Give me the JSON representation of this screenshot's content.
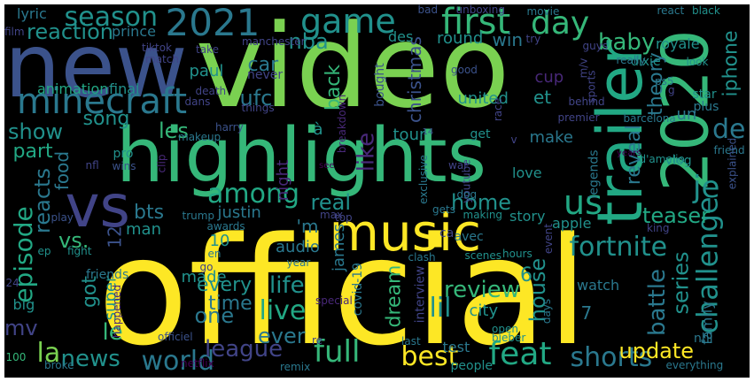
{
  "word_cloud": {
    "colors": {
      "background": "#000000",
      "yellow": "#fde725",
      "green": "#7ad151",
      "teal_green": "#35b779",
      "sea_green": "#22a884",
      "teal": "#21918c",
      "blue_teal": "#2a788e",
      "blue": "#3b528b",
      "indigo": "#414487",
      "purple": "#482878",
      "deep_purple": "#440154"
    },
    "words": [
      {
        "text": "video",
        "color": "green"
      },
      {
        "text": "official",
        "color": "yellow"
      },
      {
        "text": "highlights",
        "color": "teal_green"
      },
      {
        "text": "new",
        "color": "blue"
      },
      {
        "text": "2020",
        "color": "teal_green"
      },
      {
        "text": "trailer",
        "color": "sea_green"
      },
      {
        "text": "music",
        "color": "yellow"
      },
      {
        "text": "vs",
        "color": "indigo"
      },
      {
        "text": "2021",
        "color": "blue_teal"
      },
      {
        "text": "game",
        "color": "teal"
      },
      {
        "text": "first",
        "color": "teal_green"
      },
      {
        "text": "day",
        "color": "teal_green"
      },
      {
        "text": "minecraft",
        "color": "blue_teal"
      },
      {
        "text": "season",
        "color": "teal"
      },
      {
        "text": "fortnite",
        "color": "teal"
      },
      {
        "text": "world",
        "color": "blue_teal"
      },
      {
        "text": "shorts",
        "color": "blue_teal"
      },
      {
        "text": "full",
        "color": "teal_green"
      },
      {
        "text": "feat",
        "color": "sea_green"
      },
      {
        "text": "best",
        "color": "yellow"
      },
      {
        "text": "episode",
        "color": "sea_green"
      },
      {
        "text": "live",
        "color": "sea_green"
      },
      {
        "text": "life",
        "color": "teal"
      },
      {
        "text": "league",
        "color": "indigo"
      },
      {
        "text": "news",
        "color": "teal"
      },
      {
        "text": "la",
        "color": "green"
      },
      {
        "text": "us",
        "color": "sea_green"
      },
      {
        "text": "among",
        "color": "sea_green"
      },
      {
        "text": "baby",
        "color": "teal_green"
      },
      {
        "text": "reaction",
        "color": "teal"
      },
      {
        "text": "challenge",
        "color": "teal"
      },
      {
        "text": "je",
        "color": "teal"
      },
      {
        "text": "update",
        "color": "yellow"
      },
      {
        "text": "de",
        "color": "blue_teal"
      },
      {
        "text": "review",
        "color": "teal_green"
      },
      {
        "text": "lil",
        "color": "teal"
      },
      {
        "text": "series",
        "color": "teal"
      },
      {
        "text": "battle",
        "color": "blue_teal"
      },
      {
        "text": "house",
        "color": "teal"
      },
      {
        "text": "iphone",
        "color": "teal"
      },
      {
        "text": "theory",
        "color": "blue_teal"
      },
      {
        "text": "reveal",
        "color": "blue_teal"
      },
      {
        "text": "teaser",
        "color": "sea_green"
      },
      {
        "text": "home",
        "color": "teal"
      },
      {
        "text": "real",
        "color": "teal"
      },
      {
        "text": "show",
        "color": "teal"
      },
      {
        "text": "part",
        "color": "sea_green"
      },
      {
        "text": "reacts",
        "color": "blue_teal"
      },
      {
        "text": "vs.",
        "color": "teal_green"
      },
      {
        "text": "bts",
        "color": "blue_teal"
      },
      {
        "text": "song",
        "color": "teal"
      },
      {
        "text": "les",
        "color": "teal_green"
      },
      {
        "text": "ufc",
        "color": "blue_teal"
      },
      {
        "text": "nba",
        "color": "teal"
      },
      {
        "text": "back",
        "color": "teal_green"
      },
      {
        "text": "car",
        "color": "blue_teal"
      },
      {
        "text": "paul",
        "color": "teal"
      },
      {
        "text": "like",
        "color": "purple"
      },
      {
        "text": "christmas",
        "color": "blue"
      },
      {
        "text": "round",
        "color": "teal"
      },
      {
        "text": "win",
        "color": "blue_teal"
      },
      {
        "text": "united",
        "color": "teal"
      },
      {
        "text": "et",
        "color": "teal"
      },
      {
        "text": "make",
        "color": "blue_teal"
      },
      {
        "text": "tour",
        "color": "teal"
      },
      {
        "text": "time",
        "color": "blue_teal"
      },
      {
        "text": "every",
        "color": "teal"
      },
      {
        "text": "one",
        "color": "blue_teal"
      },
      {
        "text": "ever",
        "color": "blue_teal"
      },
      {
        "text": "dream",
        "color": "teal_green"
      },
      {
        "text": "le",
        "color": "teal_green"
      },
      {
        "text": "mv",
        "color": "indigo"
      },
      {
        "text": "got",
        "color": "teal"
      },
      {
        "text": "food",
        "color": "blue_teal"
      },
      {
        "text": "super",
        "color": "teal"
      },
      {
        "text": "made",
        "color": "teal"
      },
      {
        "text": "audio",
        "color": "blue_teal"
      },
      {
        "text": "justin",
        "color": "blue_teal"
      },
      {
        "text": "'m",
        "color": "blue_teal"
      },
      {
        "text": "10",
        "color": "teal"
      },
      {
        "text": "12",
        "color": "blue"
      },
      {
        "text": "man",
        "color": "teal"
      },
      {
        "text": "james",
        "color": "blue_teal"
      },
      {
        "text": "night",
        "color": "purple"
      },
      {
        "text": "animation",
        "color": "sea_green"
      },
      {
        "text": "final",
        "color": "teal"
      },
      {
        "text": "lyric",
        "color": "blue_teal"
      },
      {
        "text": "prince",
        "color": "blue_teal"
      },
      {
        "text": "des",
        "color": "teal"
      },
      {
        "text": "city",
        "color": "teal"
      },
      {
        "text": "big",
        "color": "teal"
      },
      {
        "text": "6",
        "color": "teal"
      },
      {
        "text": "7",
        "color": "blue_teal"
      },
      {
        "text": "family",
        "color": "blue_teal"
      },
      {
        "text": "watch",
        "color": "blue_teal"
      },
      {
        "text": "apple",
        "color": "teal"
      },
      {
        "text": "legends",
        "color": "blue_teal"
      },
      {
        "text": "love",
        "color": "teal"
      },
      {
        "text": "story",
        "color": "teal"
      },
      {
        "text": "people",
        "color": "teal"
      },
      {
        "text": "test",
        "color": "blue_teal"
      },
      {
        "text": "covid-19",
        "color": "blue_teal"
      },
      {
        "text": "interview",
        "color": "indigo"
      },
      {
        "text": "friends",
        "color": "blue_teal"
      },
      {
        "text": "never",
        "color": "indigo"
      },
      {
        "text": "à",
        "color": "teal"
      },
      {
        "text": "get",
        "color": "teal"
      },
      {
        "text": "cup",
        "color": "purple"
      },
      {
        "text": "un",
        "color": "blue_teal"
      },
      {
        "text": "vlog",
        "color": "teal"
      },
      {
        "text": "friend",
        "color": "blue_teal"
      },
      {
        "text": "d'amelio",
        "color": "teal"
      },
      {
        "text": "star",
        "color": "teal"
      },
      {
        "text": "plus",
        "color": "blue_teal"
      },
      {
        "text": "nhl",
        "color": "blue_teal"
      },
      {
        "text": "barcelona",
        "color": "blue_teal"
      },
      {
        "text": "look",
        "color": "teal"
      },
      {
        "text": "royale",
        "color": "teal"
      },
      {
        "text": "dixie",
        "color": "teal"
      },
      {
        "text": "react",
        "color": "blue_teal"
      },
      {
        "text": "black",
        "color": "teal"
      },
      {
        "text": "explained",
        "color": "blue"
      },
      {
        "text": "guys",
        "color": "indigo"
      },
      {
        "text": "really",
        "color": "blue_teal"
      },
      {
        "text": "try",
        "color": "indigo"
      },
      {
        "text": "movie",
        "color": "blue_teal"
      },
      {
        "text": "bad",
        "color": "blue"
      },
      {
        "text": "unboxing",
        "color": "indigo"
      },
      {
        "text": "tiktok",
        "color": "indigo"
      },
      {
        "text": "take",
        "color": "indigo"
      },
      {
        "text": "manchester",
        "color": "indigo"
      },
      {
        "text": "film",
        "color": "indigo"
      },
      {
        "text": "match",
        "color": "indigo"
      },
      {
        "text": "death",
        "color": "indigo"
      },
      {
        "text": "dans",
        "color": "indigo"
      },
      {
        "text": "things",
        "color": "indigo"
      },
      {
        "text": "good",
        "color": "blue"
      },
      {
        "text": "bought",
        "color": "blue"
      },
      {
        "text": "pro",
        "color": "teal"
      },
      {
        "text": "wins",
        "color": "blue"
      },
      {
        "text": "nfl",
        "color": "indigo"
      },
      {
        "text": "clip",
        "color": "purple"
      },
      {
        "text": "harry",
        "color": "blue"
      },
      {
        "text": "makeup",
        "color": "blue_teal"
      },
      {
        "text": "trump",
        "color": "blue_teal"
      },
      {
        "text": "awards",
        "color": "blue_teal"
      },
      {
        "text": "max",
        "color": "indigo"
      },
      {
        "text": "top",
        "color": "indigo"
      },
      {
        "text": "making",
        "color": "teal"
      },
      {
        "text": "gets",
        "color": "blue_teal"
      },
      {
        "text": "exclusive",
        "color": "blue_teal"
      },
      {
        "text": "youtube",
        "color": "indigo"
      },
      {
        "text": "war",
        "color": "indigo"
      },
      {
        "text": "dog",
        "color": "blue_teal"
      },
      {
        "text": "event",
        "color": "indigo"
      },
      {
        "text": "king",
        "color": "indigo"
      },
      {
        "text": "premier",
        "color": "indigo"
      },
      {
        "text": "behind",
        "color": "indigo"
      },
      {
        "text": "sports",
        "color": "indigo"
      },
      {
        "text": "ca",
        "color": "indigo"
      },
      {
        "text": "avec",
        "color": "blue_teal"
      },
      {
        "text": "scenes",
        "color": "teal"
      },
      {
        "text": "hours",
        "color": "teal"
      },
      {
        "text": "clash",
        "color": "blue_teal"
      },
      {
        "text": "year",
        "color": "blue_teal"
      },
      {
        "text": "go",
        "color": "indigo"
      },
      {
        "text": "en",
        "color": "blue_teal"
      },
      {
        "text": "ep",
        "color": "teal"
      },
      {
        "text": "fight",
        "color": "teal"
      },
      {
        "text": "play",
        "color": "blue"
      },
      {
        "text": "remix",
        "color": "blue_teal"
      },
      {
        "text": "broke",
        "color": "blue_teal"
      },
      {
        "text": "netflix",
        "color": "deep_purple"
      },
      {
        "text": "officiel",
        "color": "blue"
      },
      {
        "text": "special",
        "color": "purple"
      },
      {
        "text": "happened",
        "color": "purple"
      },
      {
        "text": "bieber",
        "color": "teal"
      },
      {
        "text": "open",
        "color": "teal"
      },
      {
        "text": "last",
        "color": "blue_teal"
      },
      {
        "text": "days",
        "color": "blue_teal"
      },
      {
        "text": "ps5",
        "color": "blue_teal"
      },
      {
        "text": "100",
        "color": "teal_green"
      },
      {
        "text": "24",
        "color": "indigo"
      },
      {
        "text": "14",
        "color": "blue"
      },
      {
        "text": "v",
        "color": "indigo"
      },
      {
        "text": "m/v",
        "color": "indigo"
      },
      {
        "text": "race",
        "color": "indigo"
      },
      {
        "text": "g",
        "color": "indigo"
      },
      {
        "text": "re",
        "color": "indigo"
      },
      {
        "text": "everything",
        "color": "blue_teal"
      },
      {
        "text": "see",
        "color": "deep_purple"
      },
      {
        "text": "breakdown",
        "color": "purple"
      },
      {
        "text": "years",
        "color": "deep_purple"
      }
    ]
  }
}
